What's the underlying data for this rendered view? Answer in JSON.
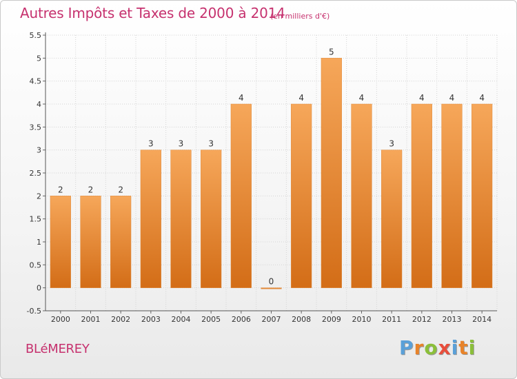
{
  "header": {
    "title": "Autres Impôts et Taxes de 2000 à 2014",
    "subtitle": "(en milliers d'€)"
  },
  "footer": {
    "commune": "BLéMEREY",
    "brand": "Proxiti"
  },
  "colors": {
    "bar_top": "#f6a75a",
    "bar_bottom": "#d36d17",
    "title": "#c6316e",
    "brand_letters": [
      "#5aa0d8",
      "#e8832a",
      "#8bbf3a",
      "#e84e3c",
      "#5aa0d8",
      "#e8832a",
      "#8bbf3a"
    ]
  },
  "chart_data": {
    "type": "bar",
    "title": "Autres Impôts et Taxes de 2000 à 2014",
    "subtitle": "(en milliers d'€)",
    "xlabel": "",
    "ylabel": "",
    "categories": [
      "2000",
      "2001",
      "2002",
      "2003",
      "2004",
      "2005",
      "2006",
      "2007",
      "2008",
      "2009",
      "2010",
      "2011",
      "2012",
      "2013",
      "2014"
    ],
    "values": [
      2,
      2,
      2,
      3,
      3,
      3,
      4,
      0,
      4,
      5,
      4,
      3,
      4,
      4,
      4
    ],
    "data_labels": [
      "2",
      "2",
      "2",
      "3",
      "3",
      "3",
      "4",
      "0",
      "4",
      "5",
      "4",
      "3",
      "4",
      "4",
      "4"
    ],
    "ylim": [
      -0.5,
      5.5
    ],
    "yticks": [
      -0.5,
      0,
      0.5,
      1,
      1.5,
      2,
      2.5,
      3,
      3.5,
      4,
      4.5,
      5,
      5.5
    ],
    "ytick_labels": [
      "-0.5",
      "0",
      "0.5",
      "1",
      "1.5",
      "2",
      "2.5",
      "3",
      "3.5",
      "4",
      "4.5",
      "5",
      "5.5"
    ],
    "grid": true,
    "legend": "none"
  }
}
